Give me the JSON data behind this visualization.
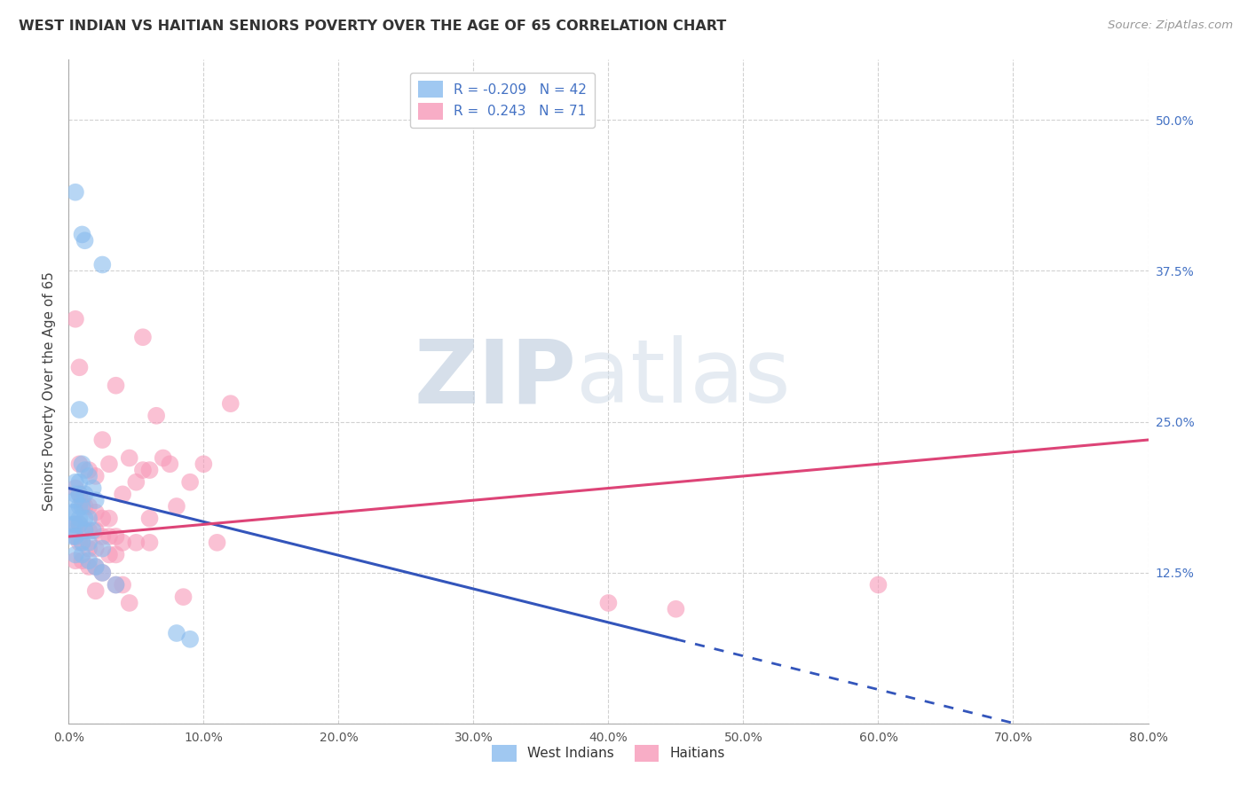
{
  "title": "WEST INDIAN VS HAITIAN SENIORS POVERTY OVER THE AGE OF 65 CORRELATION CHART",
  "source": "Source: ZipAtlas.com",
  "ylabel": "Seniors Poverty Over the Age of 65",
  "west_indian_color": "#88bbee",
  "haitian_color": "#f799b8",
  "west_indian_line_color": "#3355bb",
  "haitian_line_color": "#dd4477",
  "west_indian_points": [
    [
      0.5,
      44.0
    ],
    [
      1.0,
      40.5
    ],
    [
      1.2,
      40.0
    ],
    [
      2.5,
      38.0
    ],
    [
      0.8,
      26.0
    ],
    [
      1.0,
      21.5
    ],
    [
      1.2,
      21.0
    ],
    [
      1.5,
      20.5
    ],
    [
      0.5,
      20.0
    ],
    [
      0.8,
      20.0
    ],
    [
      1.8,
      19.5
    ],
    [
      0.5,
      19.0
    ],
    [
      0.8,
      19.0
    ],
    [
      1.2,
      19.0
    ],
    [
      2.0,
      18.5
    ],
    [
      0.5,
      18.5
    ],
    [
      0.8,
      18.0
    ],
    [
      1.0,
      18.0
    ],
    [
      0.3,
      17.5
    ],
    [
      0.5,
      17.5
    ],
    [
      0.8,
      17.0
    ],
    [
      1.2,
      17.0
    ],
    [
      1.5,
      17.0
    ],
    [
      0.3,
      16.5
    ],
    [
      0.5,
      16.5
    ],
    [
      0.8,
      16.5
    ],
    [
      1.2,
      16.0
    ],
    [
      1.8,
      16.0
    ],
    [
      0.3,
      15.5
    ],
    [
      0.5,
      15.5
    ],
    [
      1.0,
      15.0
    ],
    [
      1.5,
      15.0
    ],
    [
      2.5,
      14.5
    ],
    [
      0.5,
      14.0
    ],
    [
      1.0,
      14.0
    ],
    [
      1.5,
      13.5
    ],
    [
      2.0,
      13.0
    ],
    [
      2.5,
      12.5
    ],
    [
      3.5,
      11.5
    ],
    [
      8.0,
      7.5
    ],
    [
      9.0,
      7.0
    ]
  ],
  "haitian_points": [
    [
      0.5,
      33.5
    ],
    [
      0.8,
      29.5
    ],
    [
      5.5,
      32.0
    ],
    [
      3.5,
      28.0
    ],
    [
      2.5,
      23.5
    ],
    [
      3.0,
      21.5
    ],
    [
      4.5,
      22.0
    ],
    [
      5.0,
      20.0
    ],
    [
      5.5,
      21.0
    ],
    [
      7.0,
      22.0
    ],
    [
      10.0,
      21.5
    ],
    [
      9.0,
      20.0
    ],
    [
      6.5,
      25.5
    ],
    [
      0.5,
      19.5
    ],
    [
      0.8,
      19.0
    ],
    [
      1.0,
      18.5
    ],
    [
      1.2,
      18.0
    ],
    [
      1.5,
      18.0
    ],
    [
      2.0,
      17.5
    ],
    [
      2.5,
      17.0
    ],
    [
      3.0,
      17.0
    ],
    [
      4.0,
      19.0
    ],
    [
      6.0,
      17.0
    ],
    [
      8.0,
      18.0
    ],
    [
      12.0,
      26.5
    ],
    [
      0.5,
      16.5
    ],
    [
      0.8,
      16.5
    ],
    [
      1.2,
      16.0
    ],
    [
      1.5,
      16.0
    ],
    [
      2.0,
      16.0
    ],
    [
      2.5,
      15.5
    ],
    [
      3.0,
      15.5
    ],
    [
      3.5,
      15.5
    ],
    [
      4.0,
      15.0
    ],
    [
      5.0,
      15.0
    ],
    [
      6.0,
      15.0
    ],
    [
      0.5,
      15.5
    ],
    [
      0.8,
      15.0
    ],
    [
      1.0,
      15.0
    ],
    [
      1.5,
      14.5
    ],
    [
      2.0,
      14.5
    ],
    [
      3.0,
      14.0
    ],
    [
      3.5,
      14.0
    ],
    [
      0.5,
      13.5
    ],
    [
      1.0,
      13.5
    ],
    [
      1.5,
      13.0
    ],
    [
      2.0,
      13.0
    ],
    [
      2.5,
      12.5
    ],
    [
      3.5,
      11.5
    ],
    [
      4.0,
      11.5
    ],
    [
      2.0,
      11.0
    ],
    [
      4.5,
      10.0
    ],
    [
      8.5,
      10.5
    ],
    [
      11.0,
      15.0
    ],
    [
      0.8,
      21.5
    ],
    [
      1.5,
      21.0
    ],
    [
      2.0,
      20.5
    ],
    [
      60.0,
      11.5
    ],
    [
      6.0,
      21.0
    ],
    [
      7.5,
      21.5
    ],
    [
      40.0,
      10.0
    ],
    [
      45.0,
      9.5
    ]
  ],
  "xmin": 0.0,
  "xmax": 80.0,
  "ymin": 0.0,
  "ymax": 55.0,
  "xtick_vals": [
    0,
    10,
    20,
    30,
    40,
    50,
    60,
    70,
    80
  ],
  "ytick_vals": [
    0,
    12.5,
    25.0,
    37.5,
    50.0
  ],
  "watermark_zip": "ZIP",
  "watermark_atlas": "atlas",
  "watermark_color": "#c8d4e0",
  "background_color": "#ffffff",
  "grid_color": "#cccccc",
  "wi_line_x0": 0.0,
  "wi_line_y0": 19.5,
  "wi_line_x1": 45.0,
  "wi_line_y1": 7.0,
  "ha_line_x0": 0.0,
  "ha_line_y0": 15.5,
  "ha_line_x1": 80.0,
  "ha_line_y1": 23.5
}
